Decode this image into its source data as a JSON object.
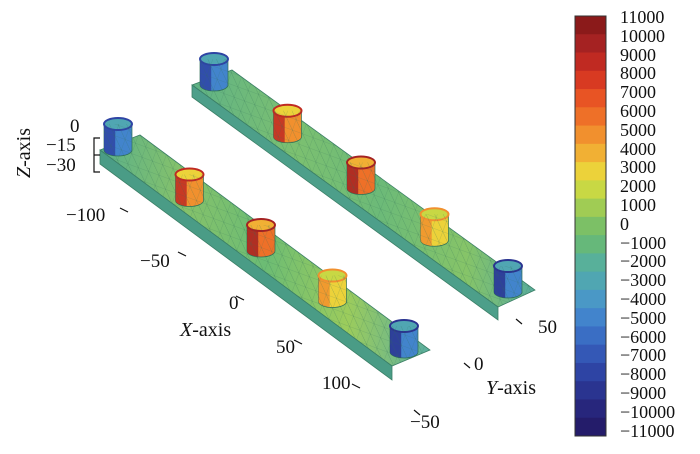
{
  "axes": {
    "z": {
      "title_letter": "Z",
      "title_suffix": "-axis",
      "ticks": [
        "0",
        "−15",
        "−30"
      ]
    },
    "x": {
      "title_letter": "X",
      "title_suffix": "-axis",
      "ticks": [
        "−100",
        "−50",
        "0",
        "50",
        "100"
      ]
    },
    "y": {
      "title_letter": "Y",
      "title_suffix": "-axis",
      "ticks": [
        "−50",
        "0",
        "50"
      ]
    }
  },
  "colorbar": {
    "labels": [
      "11000",
      "10000",
      "9000",
      "8000",
      "7000",
      "6000",
      "5000",
      "4000",
      "3000",
      "2000",
      "1000",
      "0",
      "−1000",
      "−2000",
      "−3000",
      "−4000",
      "−5000",
      "−6000",
      "−7000",
      "−8000",
      "−9000",
      "−10000",
      "−11000"
    ],
    "colors": [
      "#8b1a1a",
      "#a52222",
      "#c02a22",
      "#d83a22",
      "#e85424",
      "#ee7028",
      "#f1902e",
      "#f1b034",
      "#ecd23a",
      "#c8d844",
      "#a0cc54",
      "#7cc066",
      "#66b87a",
      "#58b09a",
      "#50a6b2",
      "#4a98c6",
      "#4284cc",
      "#3a6ec4",
      "#3458b6",
      "#2e44a4",
      "#2a3490",
      "#27267c",
      "#241c6a"
    ]
  },
  "beams": [
    {
      "name": "front-beam",
      "supports": [
        {
          "v": -0.75
        },
        {
          "v": 0.8
        },
        {
          "v": 0.95
        },
        {
          "v": 0.5
        },
        {
          "v": -0.8
        }
      ]
    },
    {
      "name": "back-beam",
      "supports": [
        {
          "v": -0.75
        },
        {
          "v": 0.8
        },
        {
          "v": 0.95
        },
        {
          "v": 0.5
        },
        {
          "v": -0.8
        }
      ]
    }
  ]
}
